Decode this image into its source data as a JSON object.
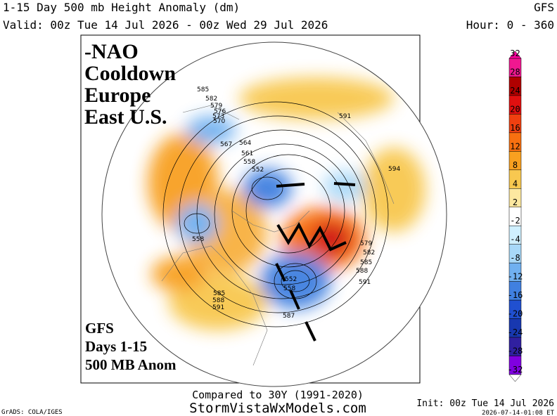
{
  "header": {
    "title": "1-15 Day 500 mb Height Anomaly (dm)",
    "model": "GFS",
    "valid": "Valid: 00z Tue 14 Jul 2026 - 00z Wed 29 Jul 2026",
    "hours": "Hour: 0 - 360"
  },
  "annotation": {
    "lines": [
      "-NAO",
      "Cooldown",
      "Europe",
      "East U.S."
    ]
  },
  "caption": {
    "lines": [
      "GFS",
      "Days 1-15",
      "500 MB Anom"
    ]
  },
  "contour_labels": [
    "585",
    "582",
    "579",
    "576",
    "573",
    "570",
    "567",
    "564",
    "561",
    "558",
    "552",
    "591",
    "594",
    "558",
    "579",
    "582",
    "585",
    "588",
    "591",
    "585",
    "588",
    "591",
    "587",
    "552",
    "558"
  ],
  "colorbar": {
    "labels": [
      "32",
      "28",
      "24",
      "20",
      "16",
      "12",
      "8",
      "4",
      "2",
      "-2",
      "-4",
      "-8",
      "-12",
      "-16",
      "-20",
      "-24",
      "-28",
      "-32"
    ]
  },
  "footer": {
    "compared": "Compared to 30Y (1991-2020)",
    "site": "StormVistaWxModels.com",
    "credit": "GrADS: COLA/IGES",
    "init": "Init: 00z Tue 14 Jul 2026",
    "stamp": "2026-07-14-01:08 ET"
  }
}
